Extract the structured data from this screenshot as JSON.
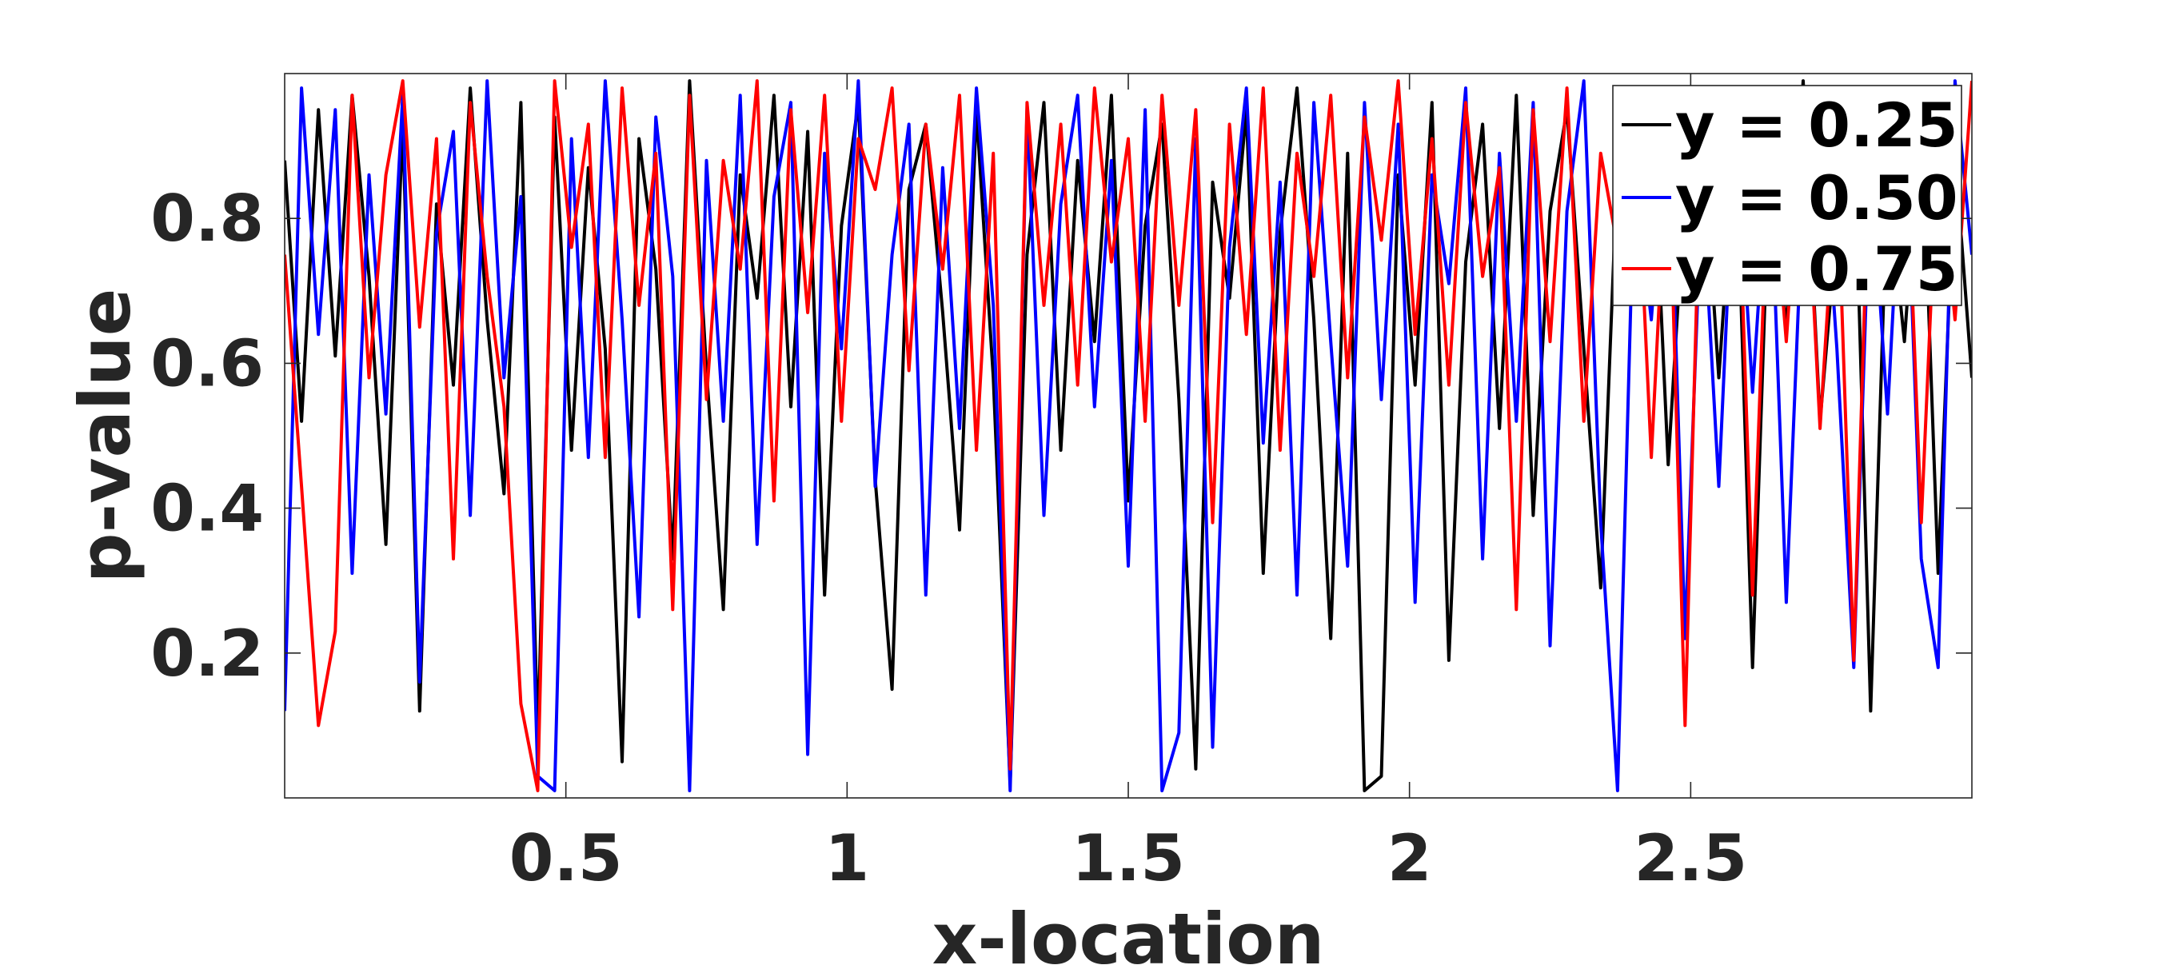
{
  "chart_data": {
    "type": "line",
    "xlabel": "x-location",
    "ylabel": "p-value",
    "xlim": [
      0,
      3
    ],
    "ylim": [
      0,
      1
    ],
    "xticks": [
      0.5,
      1,
      1.5,
      2,
      2.5
    ],
    "xtick_labels": [
      "0.5",
      "1",
      "1.5",
      "2",
      "2.5"
    ],
    "yticks": [
      0.2,
      0.4,
      0.6,
      0.8
    ],
    "ytick_labels": [
      "0.2",
      "0.4",
      "0.6",
      "0.8"
    ],
    "grid": false,
    "legend_position": "top-right",
    "series": [
      {
        "name": "y = 0.25",
        "color": "#000000",
        "x": [
          0,
          0.03,
          0.06,
          0.09,
          0.12,
          0.15,
          0.18,
          0.21,
          0.24,
          0.27,
          0.3,
          0.33,
          0.36,
          0.39,
          0.42,
          0.45,
          0.48,
          0.51,
          0.54,
          0.57,
          0.6,
          0.63,
          0.66,
          0.69,
          0.72,
          0.75,
          0.78,
          0.81,
          0.84,
          0.87,
          0.9,
          0.93,
          0.96,
          0.99,
          1.02,
          1.05,
          1.08,
          1.11,
          1.14,
          1.17,
          1.2,
          1.23,
          1.26,
          1.29,
          1.32,
          1.35,
          1.38,
          1.41,
          1.44,
          1.47,
          1.5,
          1.53,
          1.56,
          1.59,
          1.62,
          1.65,
          1.68,
          1.71,
          1.74,
          1.77,
          1.8,
          1.83,
          1.86,
          1.89,
          1.92,
          1.95,
          1.98,
          2.01,
          2.04,
          2.07,
          2.1,
          2.13,
          2.16,
          2.19,
          2.22,
          2.25,
          2.28,
          2.31,
          2.34,
          2.37,
          2.4,
          2.43,
          2.46,
          2.49,
          2.52,
          2.55,
          2.58,
          2.61,
          2.64,
          2.67,
          2.7,
          2.73,
          2.76,
          2.79,
          2.82,
          2.85,
          2.88,
          2.91,
          2.94,
          2.97,
          3.0
        ],
        "y": [
          0.88,
          0.52,
          0.95,
          0.61,
          0.97,
          0.72,
          0.35,
          0.93,
          0.12,
          0.82,
          0.57,
          0.98,
          0.66,
          0.42,
          0.96,
          0.08,
          0.94,
          0.48,
          0.87,
          0.62,
          0.05,
          0.91,
          0.73,
          0.33,
          0.99,
          0.59,
          0.26,
          0.86,
          0.69,
          0.97,
          0.54,
          0.92,
          0.28,
          0.79,
          0.96,
          0.44,
          0.15,
          0.84,
          0.93,
          0.67,
          0.37,
          0.95,
          0.58,
          0.02,
          0.75,
          0.96,
          0.48,
          0.88,
          0.63,
          0.97,
          0.41,
          0.79,
          0.93,
          0.55,
          0.04,
          0.85,
          0.69,
          0.95,
          0.31,
          0.78,
          0.98,
          0.66,
          0.22,
          0.89,
          0.01,
          0.03,
          0.86,
          0.57,
          0.96,
          0.19,
          0.74,
          0.93,
          0.51,
          0.97,
          0.39,
          0.81,
          0.95,
          0.62,
          0.29,
          0.88,
          0.71,
          0.97,
          0.46,
          0.84,
          0.93,
          0.58,
          0.92,
          0.18,
          0.87,
          0.65,
          0.99,
          0.52,
          0.79,
          0.94,
          0.12,
          0.86,
          0.63,
          0.96,
          0.31,
          0.89,
          0.58
        ]
      },
      {
        "name": "y = 0.50",
        "color": "#0000ff",
        "x": [
          0,
          0.03,
          0.06,
          0.09,
          0.12,
          0.15,
          0.18,
          0.21,
          0.24,
          0.27,
          0.3,
          0.33,
          0.36,
          0.39,
          0.42,
          0.45,
          0.48,
          0.51,
          0.54,
          0.57,
          0.6,
          0.63,
          0.66,
          0.69,
          0.72,
          0.75,
          0.78,
          0.81,
          0.84,
          0.87,
          0.9,
          0.93,
          0.96,
          0.99,
          1.02,
          1.05,
          1.08,
          1.11,
          1.14,
          1.17,
          1.2,
          1.23,
          1.26,
          1.29,
          1.32,
          1.35,
          1.38,
          1.41,
          1.44,
          1.47,
          1.5,
          1.53,
          1.56,
          1.59,
          1.62,
          1.65,
          1.68,
          1.71,
          1.74,
          1.77,
          1.8,
          1.83,
          1.86,
          1.89,
          1.92,
          1.95,
          1.98,
          2.01,
          2.04,
          2.07,
          2.1,
          2.13,
          2.16,
          2.19,
          2.22,
          2.25,
          2.28,
          2.31,
          2.34,
          2.37,
          2.4,
          2.43,
          2.46,
          2.49,
          2.52,
          2.55,
          2.58,
          2.61,
          2.64,
          2.67,
          2.7,
          2.73,
          2.76,
          2.79,
          2.82,
          2.85,
          2.88,
          2.91,
          2.94,
          2.97,
          3.0
        ],
        "y": [
          0.12,
          0.98,
          0.64,
          0.95,
          0.31,
          0.86,
          0.53,
          0.97,
          0.16,
          0.78,
          0.92,
          0.39,
          0.99,
          0.58,
          0.83,
          0.03,
          0.01,
          0.91,
          0.47,
          0.99,
          0.66,
          0.25,
          0.94,
          0.72,
          0.01,
          0.88,
          0.52,
          0.97,
          0.35,
          0.83,
          0.96,
          0.06,
          0.89,
          0.62,
          0.99,
          0.43,
          0.75,
          0.93,
          0.28,
          0.87,
          0.51,
          0.98,
          0.68,
          0.01,
          0.95,
          0.39,
          0.82,
          0.97,
          0.54,
          0.88,
          0.32,
          0.95,
          0.01,
          0.09,
          0.91,
          0.07,
          0.76,
          0.98,
          0.49,
          0.85,
          0.28,
          0.96,
          0.63,
          0.32,
          0.96,
          0.55,
          0.93,
          0.27,
          0.86,
          0.71,
          0.98,
          0.33,
          0.89,
          0.52,
          0.96,
          0.21,
          0.81,
          0.99,
          0.38,
          0.01,
          0.87,
          0.66,
          0.97,
          0.22,
          0.85,
          0.43,
          0.94,
          0.56,
          0.91,
          0.27,
          0.84,
          0.96,
          0.62,
          0.18,
          0.88,
          0.53,
          0.97,
          0.33,
          0.18,
          0.99,
          0.75
        ]
      },
      {
        "name": "y = 0.75",
        "color": "#ff0000",
        "x": [
          0,
          0.03,
          0.06,
          0.09,
          0.12,
          0.15,
          0.18,
          0.21,
          0.24,
          0.27,
          0.3,
          0.33,
          0.36,
          0.39,
          0.42,
          0.45,
          0.48,
          0.51,
          0.54,
          0.57,
          0.6,
          0.63,
          0.66,
          0.69,
          0.72,
          0.75,
          0.78,
          0.81,
          0.84,
          0.87,
          0.9,
          0.93,
          0.96,
          0.99,
          1.02,
          1.05,
          1.08,
          1.11,
          1.14,
          1.17,
          1.2,
          1.23,
          1.26,
          1.29,
          1.32,
          1.35,
          1.38,
          1.41,
          1.44,
          1.47,
          1.5,
          1.53,
          1.56,
          1.59,
          1.62,
          1.65,
          1.68,
          1.71,
          1.74,
          1.77,
          1.8,
          1.83,
          1.86,
          1.89,
          1.92,
          1.95,
          1.98,
          2.01,
          2.04,
          2.07,
          2.1,
          2.13,
          2.16,
          2.19,
          2.22,
          2.25,
          2.28,
          2.31,
          2.34,
          2.37,
          2.4,
          2.43,
          2.46,
          2.49,
          2.52,
          2.55,
          2.58,
          2.61,
          2.64,
          2.67,
          2.7,
          2.73,
          2.76,
          2.79,
          2.82,
          2.85,
          2.88,
          2.91,
          2.94,
          2.97,
          3.0
        ],
        "y": [
          0.75,
          0.43,
          0.1,
          0.23,
          0.97,
          0.58,
          0.86,
          0.99,
          0.65,
          0.91,
          0.33,
          0.96,
          0.72,
          0.54,
          0.13,
          0.01,
          0.99,
          0.76,
          0.93,
          0.47,
          0.98,
          0.68,
          0.89,
          0.26,
          0.97,
          0.55,
          0.88,
          0.73,
          0.99,
          0.41,
          0.95,
          0.67,
          0.97,
          0.52,
          0.91,
          0.84,
          0.98,
          0.59,
          0.93,
          0.73,
          0.97,
          0.48,
          0.89,
          0.04,
          0.96,
          0.68,
          0.93,
          0.57,
          0.98,
          0.74,
          0.91,
          0.52,
          0.97,
          0.68,
          0.95,
          0.38,
          0.93,
          0.64,
          0.98,
          0.48,
          0.89,
          0.72,
          0.97,
          0.58,
          0.94,
          0.77,
          0.99,
          0.64,
          0.91,
          0.57,
          0.96,
          0.72,
          0.87,
          0.26,
          0.95,
          0.63,
          0.98,
          0.52,
          0.89,
          0.76,
          0.97,
          0.47,
          0.93,
          0.1,
          0.96,
          0.69,
          0.98,
          0.28,
          0.92,
          0.63,
          0.97,
          0.51,
          0.88,
          0.19,
          0.96,
          0.73,
          0.98,
          0.38,
          0.91,
          0.66,
          0.99
        ]
      }
    ]
  }
}
